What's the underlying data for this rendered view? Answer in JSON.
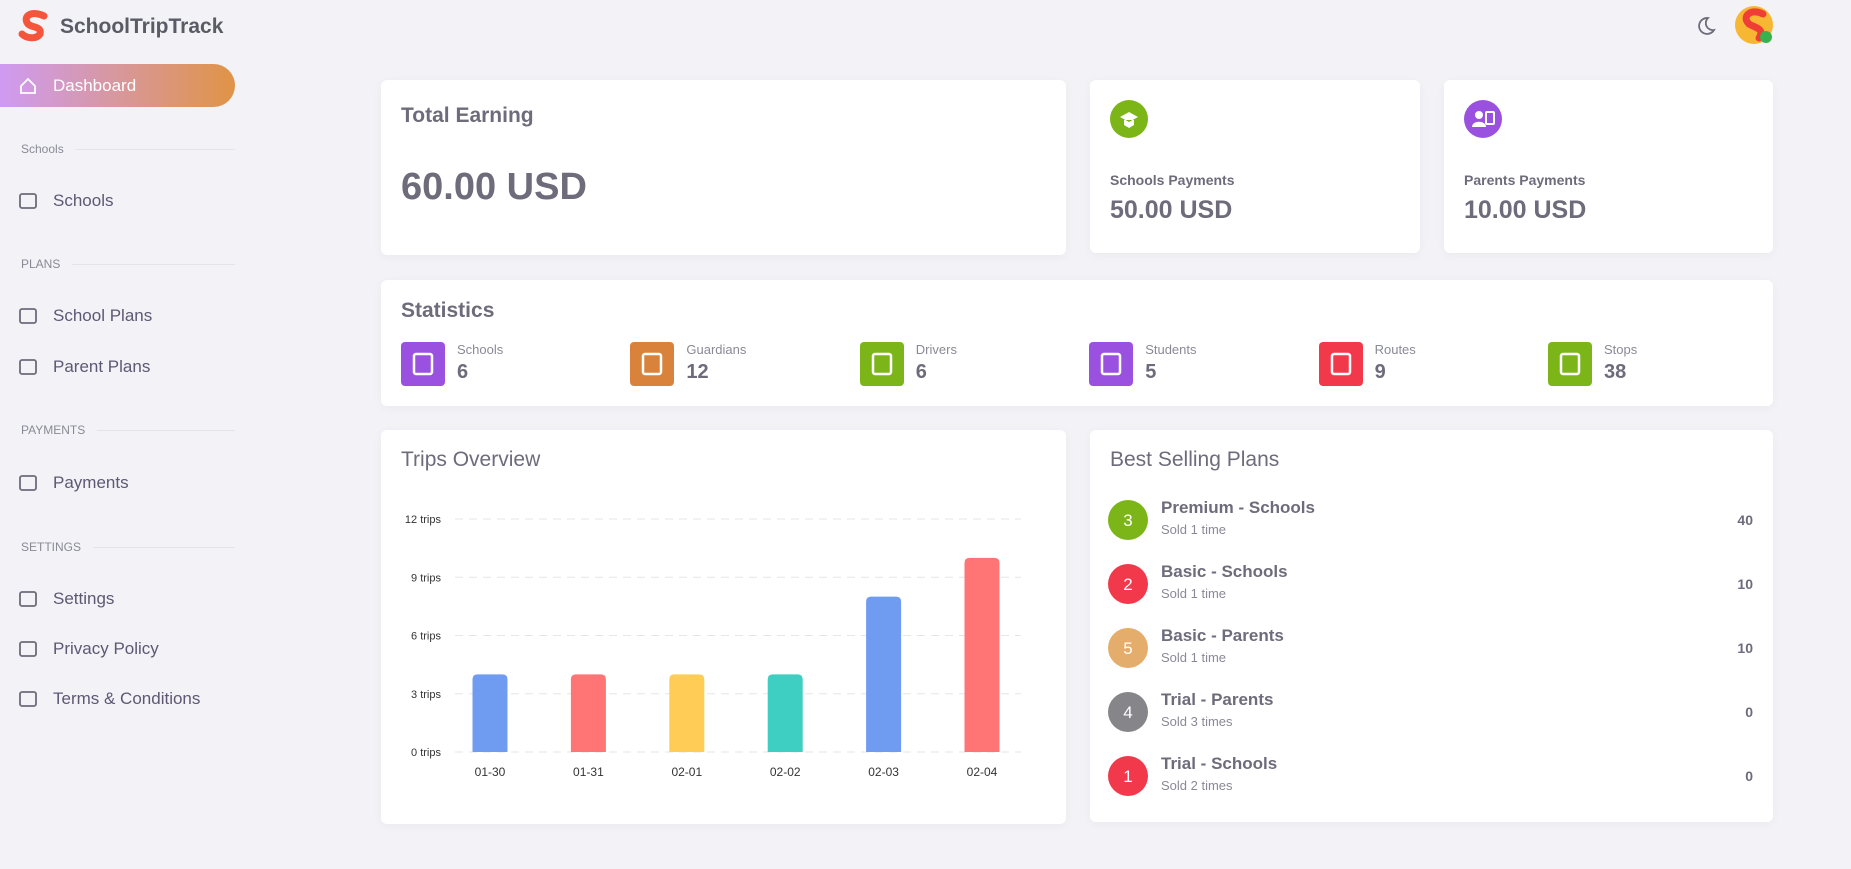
{
  "brand": "SchoolTripTrack",
  "nav": {
    "dashboard": "Dashboard",
    "sections": [
      {
        "title": "Schools",
        "items": [
          "Schools"
        ]
      },
      {
        "title": "PLANS",
        "items": [
          "School Plans",
          "Parent Plans"
        ]
      },
      {
        "title": "PAYMENTS",
        "items": [
          "Payments"
        ]
      },
      {
        "title": "SETTINGS",
        "items": [
          "Settings",
          "Privacy Policy",
          "Terms & Conditions"
        ]
      }
    ]
  },
  "earnings": {
    "title": "Total Earning",
    "total": "60.00 USD",
    "schools_label": "Schools Payments",
    "schools": "50.00 USD",
    "parents_label": "Parents Payments",
    "parents": "10.00 USD"
  },
  "statistics": {
    "title": "Statistics",
    "items": [
      {
        "label": "Schools",
        "value": 6
      },
      {
        "label": "Guardians",
        "value": 12
      },
      {
        "label": "Drivers",
        "value": 6
      },
      {
        "label": "Students",
        "value": 5
      },
      {
        "label": "Routes",
        "value": 9
      },
      {
        "label": "Stops",
        "value": 38
      }
    ]
  },
  "chart_data": {
    "type": "bar",
    "title": "Trips Overview",
    "categories": [
      "01-30",
      "01-31",
      "02-01",
      "02-02",
      "02-03",
      "02-04"
    ],
    "values": [
      4,
      4,
      4,
      4,
      8,
      10
    ],
    "colors": [
      "#6f9cf0",
      "#ff7474",
      "#ffcd56",
      "#3ecfc2",
      "#6f9cf0",
      "#ff7474"
    ],
    "ylim": [
      0,
      12
    ],
    "yticks": [
      {
        "value": 0,
        "label": "0 trips"
      },
      {
        "value": 3,
        "label": "3 trips"
      },
      {
        "value": 6,
        "label": "6 trips"
      },
      {
        "value": 9,
        "label": "9 trips"
      },
      {
        "value": 12,
        "label": "12 trips"
      }
    ],
    "grid": true
  },
  "best_selling": {
    "title": "Best Selling Plans",
    "plans": [
      {
        "rank": 3,
        "name": "Premium - Schools",
        "sold": "Sold 1 time",
        "value": 40,
        "color": "#7cb518"
      },
      {
        "rank": 2,
        "name": "Basic - Schools",
        "sold": "Sold 1 time",
        "value": 10,
        "color": "#f2394b"
      },
      {
        "rank": 5,
        "name": "Basic - Parents",
        "sold": "Sold 1 time",
        "value": 10,
        "color": "#e5ad6b"
      },
      {
        "rank": 4,
        "name": "Trial - Parents",
        "sold": "Sold 3 times",
        "value": 0,
        "color": "#85858a"
      },
      {
        "rank": 1,
        "name": "Trial - Schools",
        "sold": "Sold 2 times",
        "value": 0,
        "color": "#f2394b"
      }
    ]
  }
}
